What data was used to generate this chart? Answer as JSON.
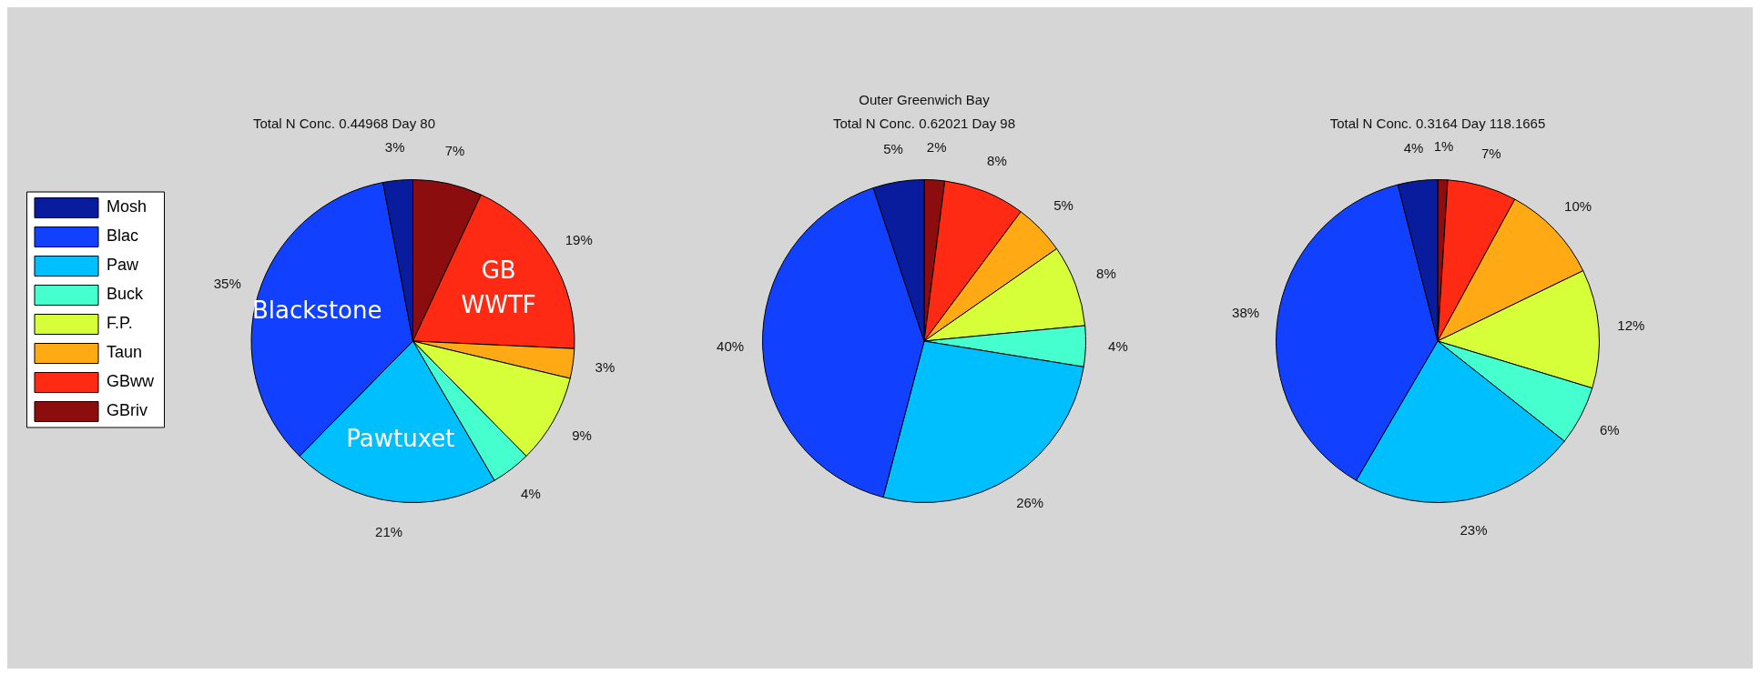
{
  "chart_data": [
    {
      "type": "pie",
      "title": "Total N Conc. 0.44968 Day 80",
      "categories": [
        "Mosh",
        "Blac",
        "Paw",
        "Buck",
        "F.P.",
        "Taun",
        "GBww",
        "GBriv"
      ],
      "values": [
        3,
        35,
        21,
        4,
        9,
        3,
        19,
        7
      ],
      "value_labels": [
        "3%",
        "35%",
        "21%",
        "4%",
        "9%",
        "3%",
        "19%",
        "7%"
      ],
      "colors": [
        "#0a1c9e",
        "#1141ff",
        "#00bfff",
        "#45ffcf",
        "#d6ff3a",
        "#ffaa14",
        "#ff2a14",
        "#8b0d0d"
      ],
      "legend": "left",
      "annotations": [
        {
          "text": "Blackstone",
          "x": "Blac"
        },
        {
          "text": "Pawtuxet",
          "x": "Paw"
        },
        {
          "text": "GB WWTF",
          "x": "GBww"
        }
      ]
    },
    {
      "type": "pie",
      "title": "Outer Greenwich Bay",
      "subtitle": "Total N Conc. 0.62021 Day 98",
      "categories": [
        null,
        null,
        null,
        null,
        null,
        null,
        null,
        null
      ],
      "values": [
        5,
        40,
        26,
        4,
        8,
        5,
        8,
        2
      ],
      "value_labels": [
        "5%",
        "40%",
        "26%",
        "4%",
        "8%",
        "5%",
        "8%",
        "2%"
      ],
      "colors": [
        "#0a1c9e",
        "#1141ff",
        "#00bfff",
        "#45ffcf",
        "#d6ff3a",
        "#ffaa14",
        "#ff2a14",
        "#8b0d0d"
      ],
      "legend": false
    },
    {
      "type": "pie",
      "title": "Total N Conc. 0.3164 Day 118.1665",
      "categories": [
        null,
        null,
        null,
        null,
        null,
        null,
        null,
        null
      ],
      "values": [
        4,
        38,
        23,
        6,
        12,
        10,
        7,
        1
      ],
      "value_labels": [
        "4%",
        "38%",
        "23%",
        "6%",
        "12%",
        "10%",
        "7%",
        "1%"
      ],
      "colors": [
        "#0a1c9e",
        "#1141ff",
        "#00bfff",
        "#45ffcf",
        "#d6ff3a",
        "#ffaa14",
        "#ff2a14",
        "#8b0d0d"
      ],
      "legend": false
    }
  ]
}
